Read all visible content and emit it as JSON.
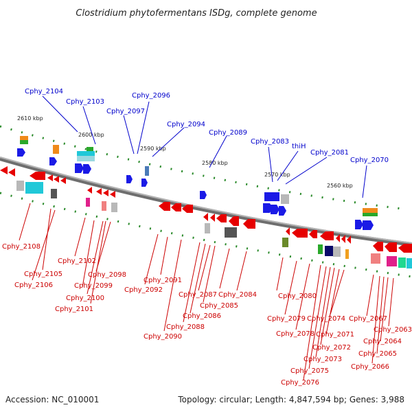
{
  "title": "Clostridium phytofermentans ISDg, complete genome",
  "footer": {
    "accession": "Accession: NC_010001",
    "summary": "Topology: circular; Length: 4,847,594 bp; Genes: 3,988"
  },
  "colors": {
    "forward_label": "#0000cc",
    "reverse_label": "#cc0000",
    "forward_gene": "#1a1ae6",
    "reverse_gene": "#e60000",
    "backbone": "#808080",
    "tick": "#1f8a1f"
  },
  "kbp_ticks": [
    "2610 kbp",
    "2600 kbp",
    "2590 kbp",
    "2580 kbp",
    "2570 kbp",
    "2560 kbp"
  ],
  "forward_labels": [
    "Cphy_2104",
    "Cphy_2103",
    "Cphy_2097",
    "Cphy_2096",
    "Cphy_2094",
    "Cphy_2089",
    "Cphy_2083",
    "thiH",
    "Cphy_2081",
    "Cphy_2070"
  ],
  "reverse_labels": [
    "Cphy_2108",
    "Cphy_2105",
    "Cphy_2106",
    "Cphy_2102",
    "Cphy_2099",
    "Cphy_2098",
    "Cphy_2100",
    "Cphy_2101",
    "Cphy_2091",
    "Cphy_2092",
    "Cphy_2087",
    "Cphy_2086",
    "Cphy_2085",
    "Cphy_2084",
    "Cphy_2088",
    "Cphy_2090",
    "Cphy_2080",
    "Cphy_2079",
    "Cphy_2078",
    "Cphy_2074",
    "Cphy_2071",
    "Cphy_2072",
    "Cphy_2073",
    "Cphy_2075",
    "Cphy_2076",
    "Cphy_2067",
    "Cphy_2063",
    "Cphy_2064",
    "Cphy_2065",
    "Cphy_2066"
  ]
}
